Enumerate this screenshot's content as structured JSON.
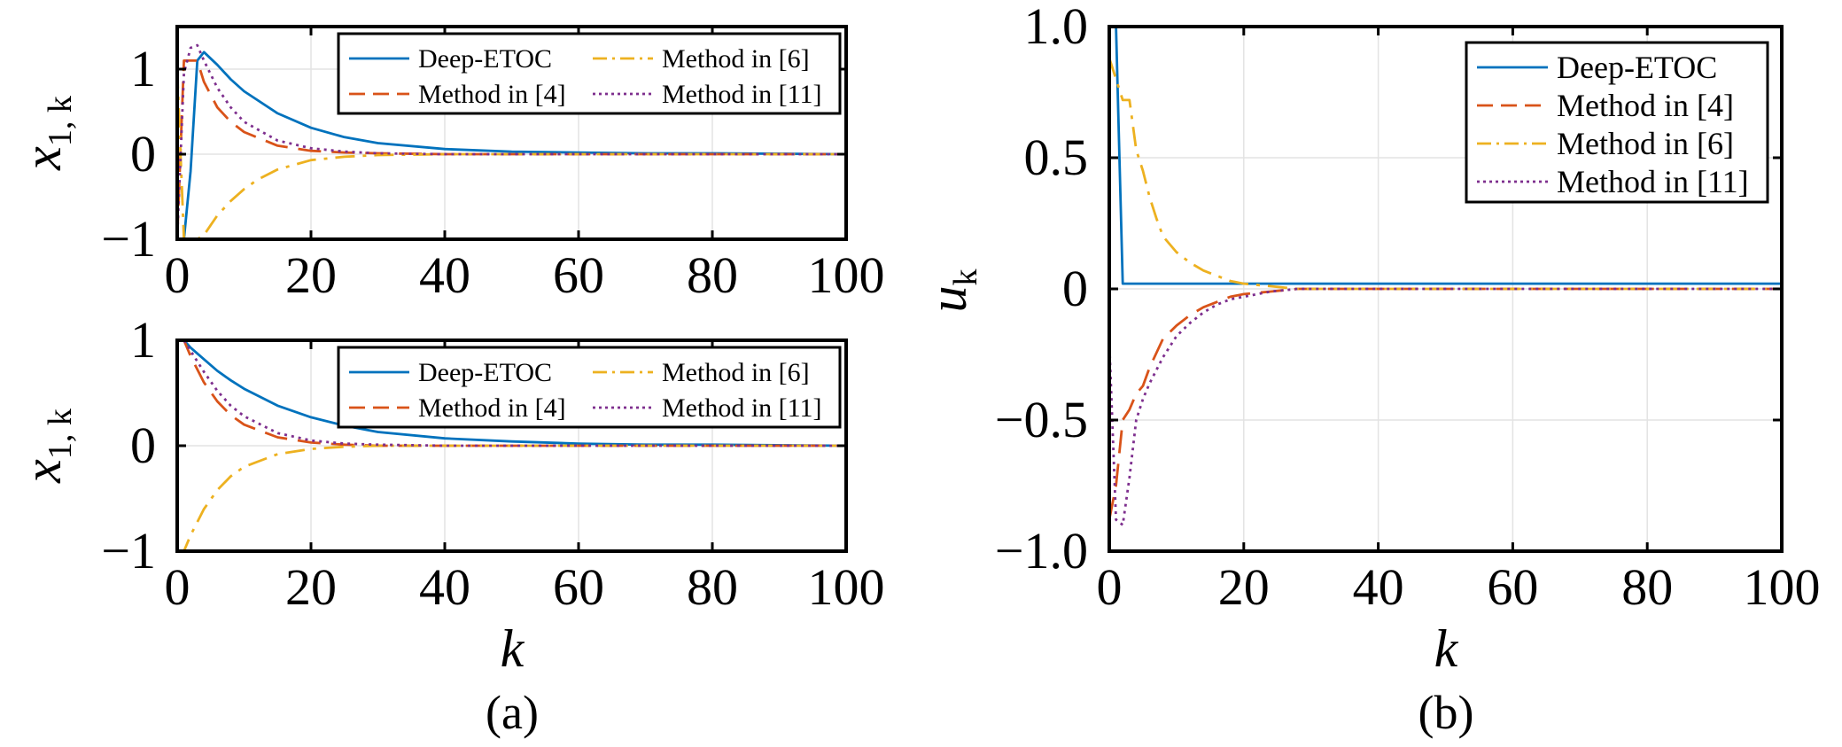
{
  "colors": {
    "deep_etoc": "#0072BD",
    "method4": "#D95319",
    "method6": "#EDB120",
    "method11": "#7E2F8E"
  },
  "panels": {
    "a": {
      "caption": "(a)"
    },
    "b": {
      "caption": "(b)"
    }
  },
  "chart_data": [
    {
      "id": "a_top",
      "type": "line",
      "xlabel": "",
      "ylabel": "x1,k",
      "ylabel_parts": {
        "var": "x",
        "sub": "1, k"
      },
      "xlim": [
        0,
        100
      ],
      "ylim": [
        -1,
        1.5
      ],
      "xticks": [
        0,
        20,
        40,
        60,
        80,
        100
      ],
      "yticks": [
        -1,
        0,
        1
      ],
      "xtick_labels": [
        "0",
        "20",
        "40",
        "60",
        "80",
        "100"
      ],
      "ytick_labels": [
        "−1",
        "0",
        "1"
      ],
      "grid": true,
      "legend": {
        "placement": "top-right",
        "columns": 2
      },
      "series": [
        {
          "name": "Deep-ETOC",
          "style": "solid",
          "color": "#0072BD",
          "x": [
            0,
            1,
            2,
            3,
            4,
            6,
            8,
            10,
            15,
            20,
            25,
            30,
            40,
            50,
            60,
            70,
            80,
            100
          ],
          "y": [
            -1.0,
            -1.0,
            -0.2,
            1.1,
            1.2,
            1.05,
            0.88,
            0.74,
            0.48,
            0.31,
            0.2,
            0.13,
            0.06,
            0.03,
            0.02,
            0.01,
            0.01,
            0.0
          ]
        },
        {
          "name": "Method in [4]",
          "style": "dashed",
          "color": "#D95319",
          "x": [
            0,
            1,
            2,
            3,
            4,
            6,
            8,
            10,
            15,
            20,
            25,
            30,
            40,
            60,
            100
          ],
          "y": [
            -1.0,
            1.1,
            1.1,
            1.1,
            0.85,
            0.55,
            0.38,
            0.26,
            0.1,
            0.04,
            0.02,
            0.01,
            0.0,
            0.0,
            0.0
          ]
        },
        {
          "name": "Method in [6]",
          "style": "dashdot",
          "color": "#EDB120",
          "x": [
            0,
            1,
            2,
            3,
            4,
            6,
            8,
            10,
            12,
            15,
            20,
            25,
            30,
            40,
            60,
            100
          ],
          "y": [
            1.0,
            -1.0,
            -1.0,
            -1.0,
            -0.95,
            -0.72,
            -0.55,
            -0.41,
            -0.3,
            -0.18,
            -0.07,
            -0.03,
            -0.01,
            0.0,
            0.0,
            0.0
          ]
        },
        {
          "name": "Method in [11]",
          "style": "dotted",
          "color": "#7E2F8E",
          "x": [
            0,
            1,
            2,
            3,
            4,
            6,
            8,
            10,
            15,
            20,
            25,
            30,
            40,
            60,
            100
          ],
          "y": [
            -1.0,
            0.95,
            1.25,
            1.28,
            1.1,
            0.78,
            0.55,
            0.38,
            0.16,
            0.07,
            0.03,
            0.01,
            0.0,
            0.0,
            0.0
          ]
        }
      ]
    },
    {
      "id": "a_bottom",
      "type": "line",
      "xlabel": "k",
      "ylabel": "x1,k",
      "ylabel_parts": {
        "var": "x",
        "sub": "1, k"
      },
      "xlim": [
        0,
        100
      ],
      "ylim": [
        -1,
        1
      ],
      "xticks": [
        0,
        20,
        40,
        60,
        80,
        100
      ],
      "yticks": [
        -1,
        0,
        1
      ],
      "xtick_labels": [
        "0",
        "20",
        "40",
        "60",
        "80",
        "100"
      ],
      "ytick_labels": [
        "−1",
        "0",
        "1"
      ],
      "grid": true,
      "legend": {
        "placement": "top-right",
        "columns": 2
      },
      "series": [
        {
          "name": "Deep-ETOC",
          "style": "solid",
          "color": "#0072BD",
          "x": [
            0,
            1,
            2,
            4,
            6,
            8,
            10,
            15,
            20,
            25,
            30,
            40,
            50,
            60,
            70,
            80,
            100
          ],
          "y": [
            1.0,
            1.0,
            0.93,
            0.82,
            0.71,
            0.62,
            0.54,
            0.38,
            0.27,
            0.19,
            0.13,
            0.07,
            0.04,
            0.02,
            0.01,
            0.01,
            0.0
          ]
        },
        {
          "name": "Method in [4]",
          "style": "dashed",
          "color": "#D95319",
          "x": [
            0,
            1,
            2,
            4,
            6,
            8,
            10,
            15,
            20,
            25,
            30,
            40,
            60,
            100
          ],
          "y": [
            1.0,
            1.0,
            0.85,
            0.6,
            0.42,
            0.29,
            0.2,
            0.08,
            0.03,
            0.01,
            0.0,
            0.0,
            0.0,
            0.0
          ]
        },
        {
          "name": "Method in [6]",
          "style": "dashdot",
          "color": "#EDB120",
          "x": [
            0,
            1,
            2,
            4,
            6,
            8,
            10,
            15,
            20,
            25,
            30,
            40,
            60,
            100
          ],
          "y": [
            -1.0,
            -1.0,
            -0.85,
            -0.6,
            -0.42,
            -0.29,
            -0.2,
            -0.08,
            -0.03,
            -0.01,
            0.0,
            0.0,
            0.0,
            0.0
          ]
        },
        {
          "name": "Method in [11]",
          "style": "dotted",
          "color": "#7E2F8E",
          "x": [
            0,
            1,
            2,
            4,
            6,
            8,
            10,
            15,
            20,
            25,
            30,
            40,
            60,
            100
          ],
          "y": [
            1.0,
            1.0,
            0.9,
            0.7,
            0.52,
            0.38,
            0.28,
            0.12,
            0.05,
            0.02,
            0.01,
            0.0,
            0.0,
            0.0
          ]
        }
      ]
    },
    {
      "id": "b",
      "type": "line",
      "xlabel": "k",
      "ylabel": "uk",
      "ylabel_parts": {
        "var": "u",
        "sub": "k"
      },
      "xlim": [
        0,
        100
      ],
      "ylim": [
        -1,
        1
      ],
      "xticks": [
        0,
        20,
        40,
        60,
        80,
        100
      ],
      "yticks": [
        -1,
        -0.5,
        0,
        0.5,
        1
      ],
      "xtick_labels": [
        "0",
        "20",
        "40",
        "60",
        "80",
        "100"
      ],
      "ytick_labels": [
        "−1.0",
        "−0.5",
        "0",
        "0.5",
        "1.0"
      ],
      "grid": true,
      "legend": {
        "placement": "top-right",
        "columns": 1
      },
      "series": [
        {
          "name": "Deep-ETOC",
          "style": "solid",
          "color": "#0072BD",
          "x": [
            0,
            1,
            2,
            100
          ],
          "y": [
            1.0,
            1.0,
            0.02,
            0.02
          ]
        },
        {
          "name": "Method in [4]",
          "style": "dashed",
          "color": "#D95319",
          "x": [
            0,
            1,
            2,
            3,
            4,
            5,
            6,
            8,
            10,
            12,
            14,
            16,
            18,
            20,
            24,
            28,
            35,
            100
          ],
          "y": [
            -0.88,
            -0.75,
            -0.5,
            -0.46,
            -0.4,
            -0.37,
            -0.3,
            -0.19,
            -0.14,
            -0.1,
            -0.07,
            -0.05,
            -0.03,
            -0.02,
            -0.01,
            0.0,
            0.0,
            0.0
          ]
        },
        {
          "name": "Method in [6]",
          "style": "dashdot",
          "color": "#EDB120",
          "x": [
            0,
            1,
            2,
            3,
            4,
            5,
            6,
            7,
            8,
            10,
            12,
            14,
            16,
            18,
            20,
            24,
            28,
            100
          ],
          "y": [
            0.88,
            0.8,
            0.72,
            0.72,
            0.53,
            0.45,
            0.35,
            0.27,
            0.2,
            0.14,
            0.1,
            0.07,
            0.05,
            0.03,
            0.02,
            0.01,
            0.0,
            0.0
          ]
        },
        {
          "name": "Method in [11]",
          "style": "dotted",
          "color": "#7E2F8E",
          "x": [
            0,
            1,
            2,
            3,
            4,
            5,
            6,
            8,
            10,
            12,
            14,
            16,
            18,
            20,
            24,
            28,
            35,
            100
          ],
          "y": [
            -0.2,
            -0.88,
            -0.9,
            -0.72,
            -0.5,
            -0.42,
            -0.36,
            -0.26,
            -0.18,
            -0.13,
            -0.09,
            -0.06,
            -0.04,
            -0.03,
            -0.01,
            0.0,
            0.0,
            0.0
          ]
        }
      ]
    }
  ]
}
